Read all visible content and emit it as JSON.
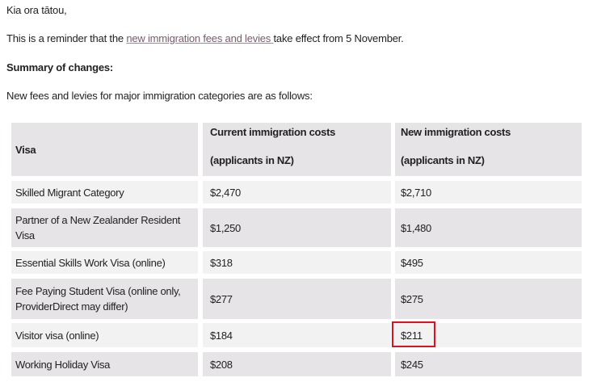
{
  "greeting": "Kia ora tātou,",
  "reminder": {
    "before": "This is a reminder that the ",
    "link": "new immigration fees and levies ",
    "after": " take effect from 5 November."
  },
  "summary_heading": "Summary of changes:",
  "intro": "New fees and levies for major immigration categories are as follows:",
  "table": {
    "headers": {
      "visa": "Visa",
      "current_line1": "Current immigration costs",
      "current_line2": "(applicants in NZ)",
      "new_line1": "New immigration costs",
      "new_line2": "(applicants in NZ)"
    },
    "rows": [
      {
        "visa": "Skilled Migrant Category",
        "current": "$2,470",
        "new": "$2,710"
      },
      {
        "visa": "Partner of a New Zealander Resident Visa",
        "current": "$1,250",
        "new": "$1,480"
      },
      {
        "visa": "Essential Skills Work Visa (online)",
        "current": "$318",
        "new": "$495"
      },
      {
        "visa": "Fee Paying Student Visa (online only, ProviderDirect may differ)",
        "current": "$277",
        "new": "$275"
      },
      {
        "visa": "Visitor visa (online)",
        "current": "$184",
        "new": "$211"
      },
      {
        "visa": "Working Holiday Visa",
        "current": "$208",
        "new": "$245"
      }
    ]
  },
  "highlight_color": "#e0101e"
}
